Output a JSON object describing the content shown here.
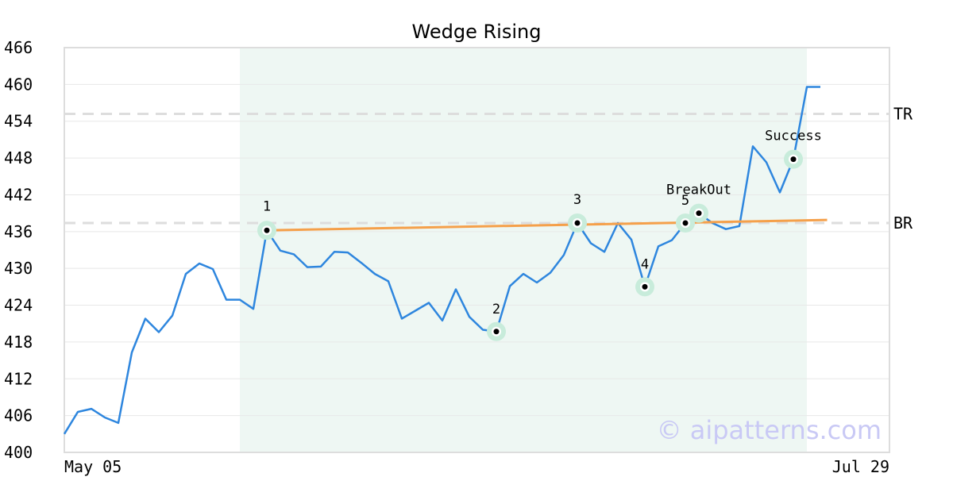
{
  "chart_data": {
    "type": "line",
    "title": "Wedge Rising",
    "xlabel": "",
    "ylabel": "",
    "ylim": [
      400,
      466
    ],
    "yticks": [
      400,
      406,
      412,
      418,
      424,
      430,
      436,
      442,
      448,
      454,
      460,
      466
    ],
    "xtick_labels": [
      "May 05",
      "Jul 29"
    ],
    "grid": "horizontal",
    "series": [
      {
        "values": [
          403,
          406.6,
          407.1,
          405.7,
          404.8,
          416.3,
          421.8,
          419.6,
          422.3,
          429.1,
          430.8,
          429.9,
          424.9,
          424.9,
          423.4,
          436.2,
          432.9,
          432.3,
          430.2,
          430.3,
          432.7,
          432.6,
          430.9,
          429.1,
          427.9,
          421.8,
          423.1,
          424.4,
          421.5,
          426.6,
          422.1,
          420.0,
          419.7,
          427.1,
          429.1,
          427.7,
          429.3,
          432.2,
          437.4,
          434.1,
          432.7,
          437.4,
          434.7,
          427.0,
          433.6,
          434.6,
          437.4,
          439.0,
          437.4,
          436.4,
          436.9,
          449.9,
          447.3,
          442.4,
          447.8,
          459.6,
          459.6
        ]
      }
    ],
    "highlight_range": {
      "start_index": 13,
      "end_index": 55
    },
    "reference_lines": [
      {
        "label": "TR",
        "y": 455.2
      },
      {
        "label": "BR",
        "y": 437.4
      }
    ],
    "trendline": {
      "start_index": 15,
      "start_y": 436.2,
      "end_index": 56.5,
      "end_y": 437.9
    },
    "markers": [
      {
        "label": "1",
        "index": 15,
        "y": 436.2
      },
      {
        "label": "2",
        "index": 32,
        "y": 419.7
      },
      {
        "label": "3",
        "index": 38,
        "y": 437.4
      },
      {
        "label": "4",
        "index": 43,
        "y": 427.0
      },
      {
        "label": "5",
        "index": 46,
        "y": 437.4
      },
      {
        "label": "BreakOut",
        "index": 47,
        "y": 439.0
      },
      {
        "label": "Success",
        "index": 54,
        "y": 447.8
      }
    ],
    "colors": {
      "line": "#2e86de",
      "trendline": "#f5a04a",
      "highlight": "#eef7f3",
      "marker_halo": "#c8ecdb",
      "grid": "#e8e8e8",
      "reference": "#dddddd",
      "frame": "#dddddd"
    }
  },
  "watermark": "© aipatterns.com"
}
